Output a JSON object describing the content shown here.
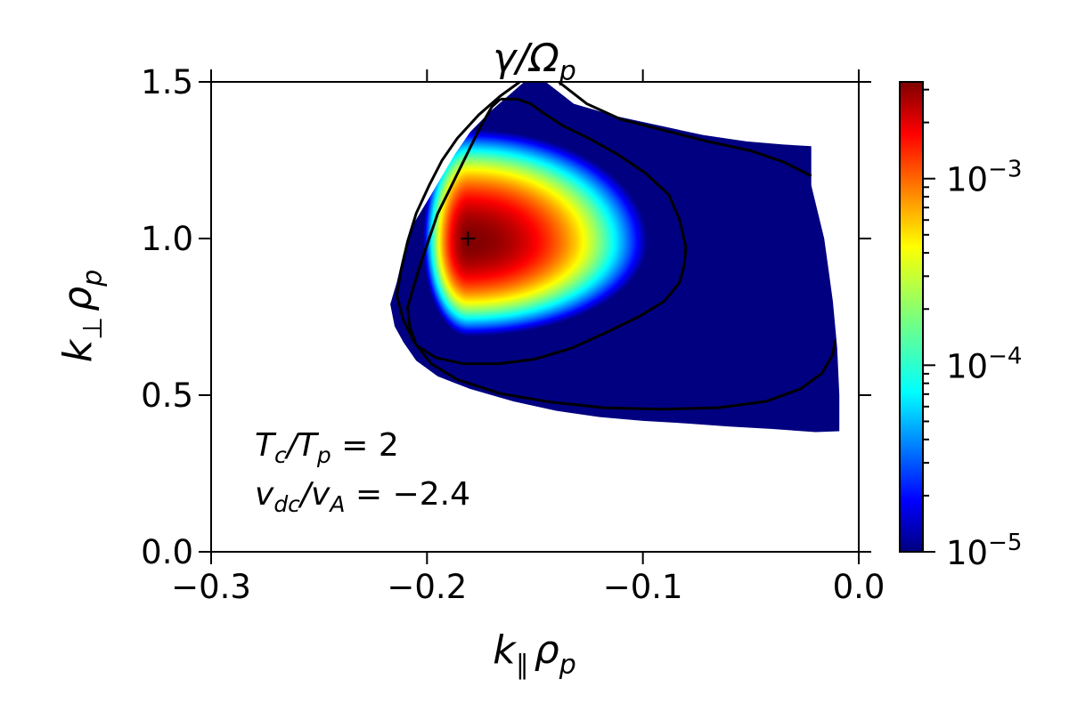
{
  "chart_data": {
    "type": "heatmap",
    "title_base": "γ/Ω",
    "title_sub": "p",
    "xlabel_base": "k",
    "xlabel_sub": "∥",
    "xlabel_rho": "ρ",
    "xlabel_rho_sub": "p",
    "ylabel_base": "k",
    "ylabel_sub": "⊥",
    "ylabel_rho": "ρ",
    "ylabel_rho_sub": "p",
    "xlim": [
      -0.3,
      0.0
    ],
    "ylim": [
      0.0,
      1.5
    ],
    "x_ticks": [
      {
        "value": -0.3,
        "label": "−0.3"
      },
      {
        "value": -0.2,
        "label": "−0.2"
      },
      {
        "value": -0.1,
        "label": "−0.1"
      },
      {
        "value": 0.0,
        "label": "0.0"
      }
    ],
    "y_ticks": [
      {
        "value": 0.0,
        "label": "0.0"
      },
      {
        "value": 0.5,
        "label": "0.5"
      },
      {
        "value": 1.0,
        "label": "1.0"
      },
      {
        "value": 1.5,
        "label": "1.5"
      }
    ],
    "colorbar": {
      "scale": "log",
      "colormap": "jet",
      "range": [
        1e-05,
        0.0033
      ],
      "ticks": [
        {
          "value": 1e-05,
          "base": "10",
          "exp": "−5"
        },
        {
          "value": 0.0001,
          "base": "10",
          "exp": "−4"
        },
        {
          "value": 0.001,
          "base": "10",
          "exp": "−3"
        }
      ]
    },
    "max_marker": {
      "x": -0.181,
      "y": 1.0
    },
    "annotations": [
      {
        "T": "T",
        "c": "c",
        "slash": "/",
        "T2": "T",
        "p": "p",
        "rest": " = 2"
      },
      {
        "v": "v",
        "dc": "dc",
        "slash": "/",
        "v2": "v",
        "A": "A",
        "rest": " = −2.4"
      }
    ],
    "region_boundary": [
      [
        -0.145,
        1.5
      ],
      [
        -0.132,
        1.43
      ],
      [
        -0.112,
        1.39
      ],
      [
        -0.092,
        1.36
      ],
      [
        -0.072,
        1.33
      ],
      [
        -0.052,
        1.31
      ],
      [
        -0.035,
        1.3
      ],
      [
        -0.022,
        1.295
      ],
      [
        -0.022,
        1.17
      ],
      [
        -0.016,
        1.0
      ],
      [
        -0.014,
        0.9
      ],
      [
        -0.012,
        0.8
      ],
      [
        -0.01,
        0.65
      ],
      [
        -0.009,
        0.5
      ],
      [
        -0.009,
        0.385
      ],
      [
        -0.02,
        0.382
      ],
      [
        -0.04,
        0.392
      ],
      [
        -0.06,
        0.4
      ],
      [
        -0.08,
        0.41
      ],
      [
        -0.1,
        0.418
      ],
      [
        -0.12,
        0.43
      ],
      [
        -0.14,
        0.45
      ],
      [
        -0.16,
        0.48
      ],
      [
        -0.18,
        0.52
      ],
      [
        -0.195,
        0.56
      ],
      [
        -0.205,
        0.61
      ],
      [
        -0.211,
        0.67
      ],
      [
        -0.215,
        0.72
      ],
      [
        -0.217,
        0.79
      ],
      [
        -0.214,
        0.86
      ],
      [
        -0.211,
        0.95
      ],
      [
        -0.206,
        1.05
      ],
      [
        -0.199,
        1.13
      ],
      [
        -0.193,
        1.2
      ],
      [
        -0.187,
        1.27
      ],
      [
        -0.18,
        1.34
      ],
      [
        -0.17,
        1.41
      ],
      [
        -0.16,
        1.47
      ],
      [
        -0.155,
        1.5
      ]
    ],
    "contour_inner": [
      [
        -0.166,
        1.445
      ],
      [
        -0.158,
        1.445
      ],
      [
        -0.152,
        1.43
      ],
      [
        -0.146,
        1.4
      ],
      [
        -0.137,
        1.36
      ],
      [
        -0.125,
        1.32
      ],
      [
        -0.112,
        1.27
      ],
      [
        -0.099,
        1.21
      ],
      [
        -0.088,
        1.14
      ],
      [
        -0.083,
        1.06
      ],
      [
        -0.08,
        0.97
      ],
      [
        -0.081,
        0.91
      ],
      [
        -0.083,
        0.86
      ],
      [
        -0.09,
        0.8
      ],
      [
        -0.102,
        0.75
      ],
      [
        -0.117,
        0.7
      ],
      [
        -0.133,
        0.65
      ],
      [
        -0.15,
        0.615
      ],
      [
        -0.167,
        0.6
      ],
      [
        -0.183,
        0.6
      ],
      [
        -0.196,
        0.62
      ],
      [
        -0.205,
        0.66
      ],
      [
        -0.208,
        0.72
      ],
      [
        -0.209,
        0.78
      ],
      [
        -0.206,
        0.85
      ],
      [
        -0.203,
        0.92
      ],
      [
        -0.199,
        1.0
      ],
      [
        -0.195,
        1.08
      ],
      [
        -0.19,
        1.15
      ],
      [
        -0.185,
        1.22
      ],
      [
        -0.18,
        1.29
      ],
      [
        -0.175,
        1.36
      ],
      [
        -0.17,
        1.42
      ],
      [
        -0.166,
        1.445
      ]
    ],
    "contour_outer_upper": [
      [
        -0.139,
        1.5
      ],
      [
        -0.126,
        1.43
      ],
      [
        -0.11,
        1.38
      ],
      [
        -0.09,
        1.345
      ],
      [
        -0.07,
        1.31
      ],
      [
        -0.05,
        1.28
      ],
      [
        -0.035,
        1.245
      ],
      [
        -0.022,
        1.2
      ]
    ],
    "contour_outer_left": [
      [
        -0.157,
        1.5
      ],
      [
        -0.166,
        1.455
      ],
      [
        -0.176,
        1.395
      ],
      [
        -0.186,
        1.32
      ],
      [
        -0.193,
        1.25
      ],
      [
        -0.199,
        1.17
      ],
      [
        -0.205,
        1.08
      ],
      [
        -0.209,
        0.99
      ],
      [
        -0.212,
        0.9
      ],
      [
        -0.214,
        0.82
      ],
      [
        -0.211,
        0.74
      ],
      [
        -0.206,
        0.67
      ],
      [
        -0.198,
        0.6
      ],
      [
        -0.186,
        0.55
      ],
      [
        -0.166,
        0.505
      ],
      [
        -0.143,
        0.478
      ],
      [
        -0.118,
        0.46
      ],
      [
        -0.092,
        0.455
      ],
      [
        -0.065,
        0.46
      ],
      [
        -0.043,
        0.48
      ],
      [
        -0.027,
        0.52
      ],
      [
        -0.017,
        0.57
      ],
      [
        -0.012,
        0.63
      ],
      [
        -0.011,
        0.675
      ]
    ],
    "intensity_field": {
      "peak_x": -0.181,
      "peak_y": 0.99,
      "log_peak": -2.48,
      "log_floor": -5.0,
      "sx_left": 0.021,
      "sx_right": 0.083,
      "sy_up": 0.36,
      "sy_down": 0.3
    }
  }
}
